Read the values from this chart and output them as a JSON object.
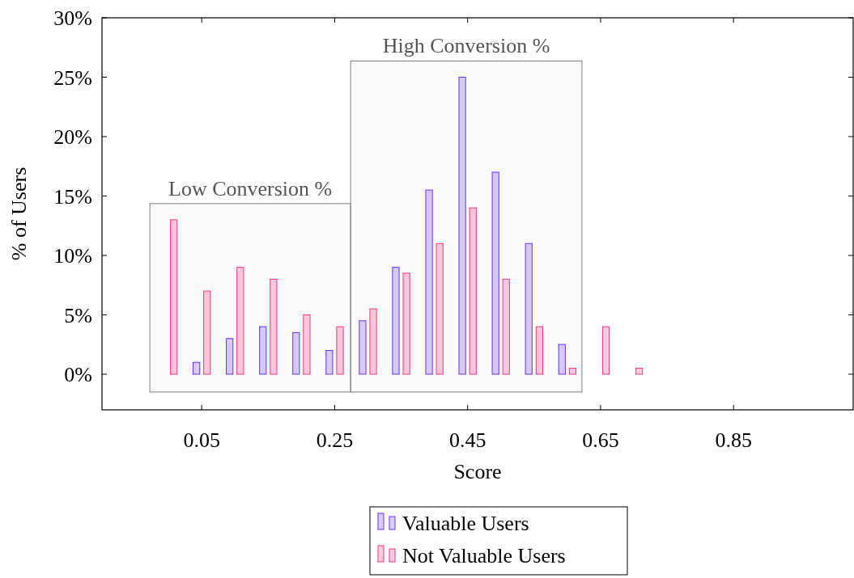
{
  "chart_data": {
    "type": "bar",
    "xlabel": "Score",
    "ylabel": "% of Users",
    "x": [
      0,
      0.05,
      0.1,
      0.15,
      0.2,
      0.25,
      0.3,
      0.35,
      0.4,
      0.45,
      0.5,
      0.55,
      0.6,
      0.65,
      0.7,
      0.75,
      0.8,
      0.85,
      0.9,
      0.95
    ],
    "series": [
      {
        "name": "Valuable Users",
        "color": "#6633ff",
        "values": [
          0,
          1,
          3,
          4,
          3.5,
          2,
          4.5,
          9,
          15.5,
          25,
          17,
          11,
          2.5,
          0,
          0,
          0,
          0,
          0,
          0,
          0
        ]
      },
      {
        "name": "Not Valuable Users",
        "color": "#ff3380",
        "values": [
          13,
          7,
          9,
          8,
          5,
          4,
          5.5,
          8.5,
          11,
          14,
          8,
          4,
          0.5,
          4,
          0.5,
          0,
          0,
          0,
          0,
          0
        ]
      }
    ],
    "xlim": [
      -0.1,
      1.03
    ],
    "xticks": [
      0.05,
      0.25,
      0.45,
      0.65,
      0.85
    ],
    "ylim": [
      -3,
      30
    ],
    "yticks": [
      {
        "value": 0,
        "label": "0%"
      },
      {
        "value": 5,
        "label": "5%"
      },
      {
        "value": 10,
        "label": "10%"
      },
      {
        "value": 15,
        "label": "15%"
      },
      {
        "value": 20,
        "label": "20%"
      },
      {
        "value": 25,
        "label": "25%"
      },
      {
        "value": 30,
        "label": "30%"
      }
    ],
    "bands": [
      {
        "axis": "x",
        "from": -0.028,
        "to": 0.274,
        "label": "Low Conversion %",
        "color": "#808080"
      },
      {
        "axis": "x",
        "from": 0.274,
        "to": 0.622,
        "label": "High Conversion %",
        "color": "#808080"
      }
    ],
    "grid": false,
    "legend": "bottom"
  }
}
